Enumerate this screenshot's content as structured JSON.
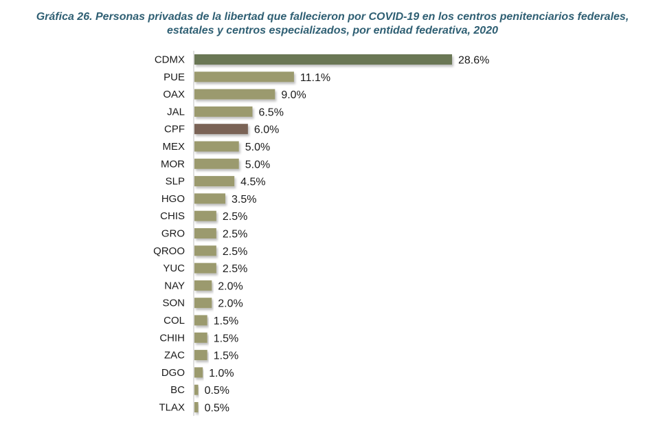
{
  "title_line1": "Gráfica 26. Personas privadas de la libertad que fallecieron por COVID-19 en los centros penitenciarios federales,",
  "title_line2": "estatales y centros especializados, por entidad federativa, 2020",
  "colors": {
    "title": "#2f5f73",
    "bar_default": "#9b9a6e",
    "bar_highlight_top": "#6b7755",
    "bar_highlight_cpf": "#7a6457",
    "axis_line": "#bfbfbf"
  },
  "chart_data": {
    "type": "bar",
    "orientation": "horizontal",
    "categories": [
      "CDMX",
      "PUE",
      "OAX",
      "JAL",
      "CPF",
      "MEX",
      "MOR",
      "SLP",
      "HGO",
      "CHIS",
      "GRO",
      "QROO",
      "YUC",
      "NAY",
      "SON",
      "COL",
      "CHIH",
      "ZAC",
      "DGO",
      "BC",
      "TLAX"
    ],
    "values": [
      28.6,
      11.1,
      9.0,
      6.5,
      6.0,
      5.0,
      5.0,
      4.5,
      3.5,
      2.5,
      2.5,
      2.5,
      2.5,
      2.0,
      2.0,
      1.5,
      1.5,
      1.5,
      1.0,
      0.5,
      0.5
    ],
    "value_labels": [
      "28.6%",
      "11.1%",
      "9.0%",
      "6.5%",
      "6.0%",
      "5.0%",
      "5.0%",
      "4.5%",
      "3.5%",
      "2.5%",
      "2.5%",
      "2.5%",
      "2.5%",
      "2.0%",
      "2.0%",
      "1.5%",
      "1.5%",
      "1.5%",
      "1.0%",
      "0.5%",
      "0.5%"
    ],
    "bar_colors": [
      "#6b7755",
      "#9b9a6e",
      "#9b9a6e",
      "#9b9a6e",
      "#7a6457",
      "#9b9a6e",
      "#9b9a6e",
      "#9b9a6e",
      "#9b9a6e",
      "#9b9a6e",
      "#9b9a6e",
      "#9b9a6e",
      "#9b9a6e",
      "#9b9a6e",
      "#9b9a6e",
      "#9b9a6e",
      "#9b9a6e",
      "#9b9a6e",
      "#9b9a6e",
      "#9b9a6e",
      "#9b9a6e"
    ],
    "xlim": [
      0,
      30
    ],
    "grid": false,
    "legend": false
  }
}
